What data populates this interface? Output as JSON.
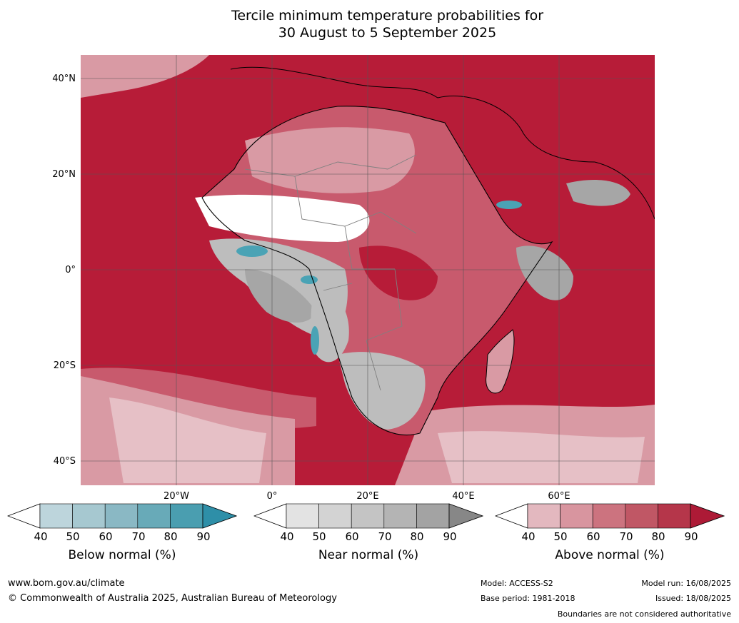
{
  "title": {
    "line1": "Tercile minimum temperature probabilities for",
    "line2": "30 August to 5 September 2025"
  },
  "map": {
    "lat_labels": [
      "40°N",
      "20°N",
      "0°",
      "20°S",
      "40°S"
    ],
    "lon_labels": [
      "20°W",
      "0°",
      "20°E",
      "40°E",
      "60°E"
    ],
    "colors": {
      "ocean_above": "#b71c38",
      "above_70": "#c85a6d",
      "above_50": "#d99aa4",
      "above_40": "#e6c0c6",
      "near_60": "#bdbdbd",
      "near_80": "#a6a6a6",
      "below": "#4aa3b5",
      "white": "#ffffff",
      "border": "#808080",
      "coast": "#000000"
    }
  },
  "colorbars": [
    {
      "title": "Below normal (%)",
      "ticks": [
        "40",
        "50",
        "60",
        "70",
        "80",
        "90"
      ],
      "colors": [
        "#ffffff",
        "#bdd5dc",
        "#a6c8d0",
        "#8ab8c4",
        "#68aab8",
        "#4a9eb0",
        "#2e8fa8"
      ]
    },
    {
      "title": "Near normal (%)",
      "ticks": [
        "40",
        "50",
        "60",
        "70",
        "80",
        "90"
      ],
      "colors": [
        "#ffffff",
        "#e3e3e3",
        "#d3d3d3",
        "#c4c4c4",
        "#b4b4b4",
        "#a3a3a3",
        "#878787"
      ]
    },
    {
      "title": "Above normal (%)",
      "ticks": [
        "40",
        "50",
        "60",
        "70",
        "80",
        "90"
      ],
      "colors": [
        "#ffffff",
        "#e3b8bf",
        "#d8959f",
        "#cc737f",
        "#c05765",
        "#b5364a",
        "#ad1a36"
      ]
    }
  ],
  "footer": {
    "url": "www.bom.gov.au/climate",
    "copyright": "© Commonwealth of Australia 2025, Australian Bureau of Meteorology",
    "model": "Model: ACCESS-S2",
    "base_period": "Base period: 1981-2018",
    "model_run": "Model run: 16/08/2025",
    "issued": "Issued: 18/08/2025",
    "disclaimer": "Boundaries are not considered authoritative"
  }
}
